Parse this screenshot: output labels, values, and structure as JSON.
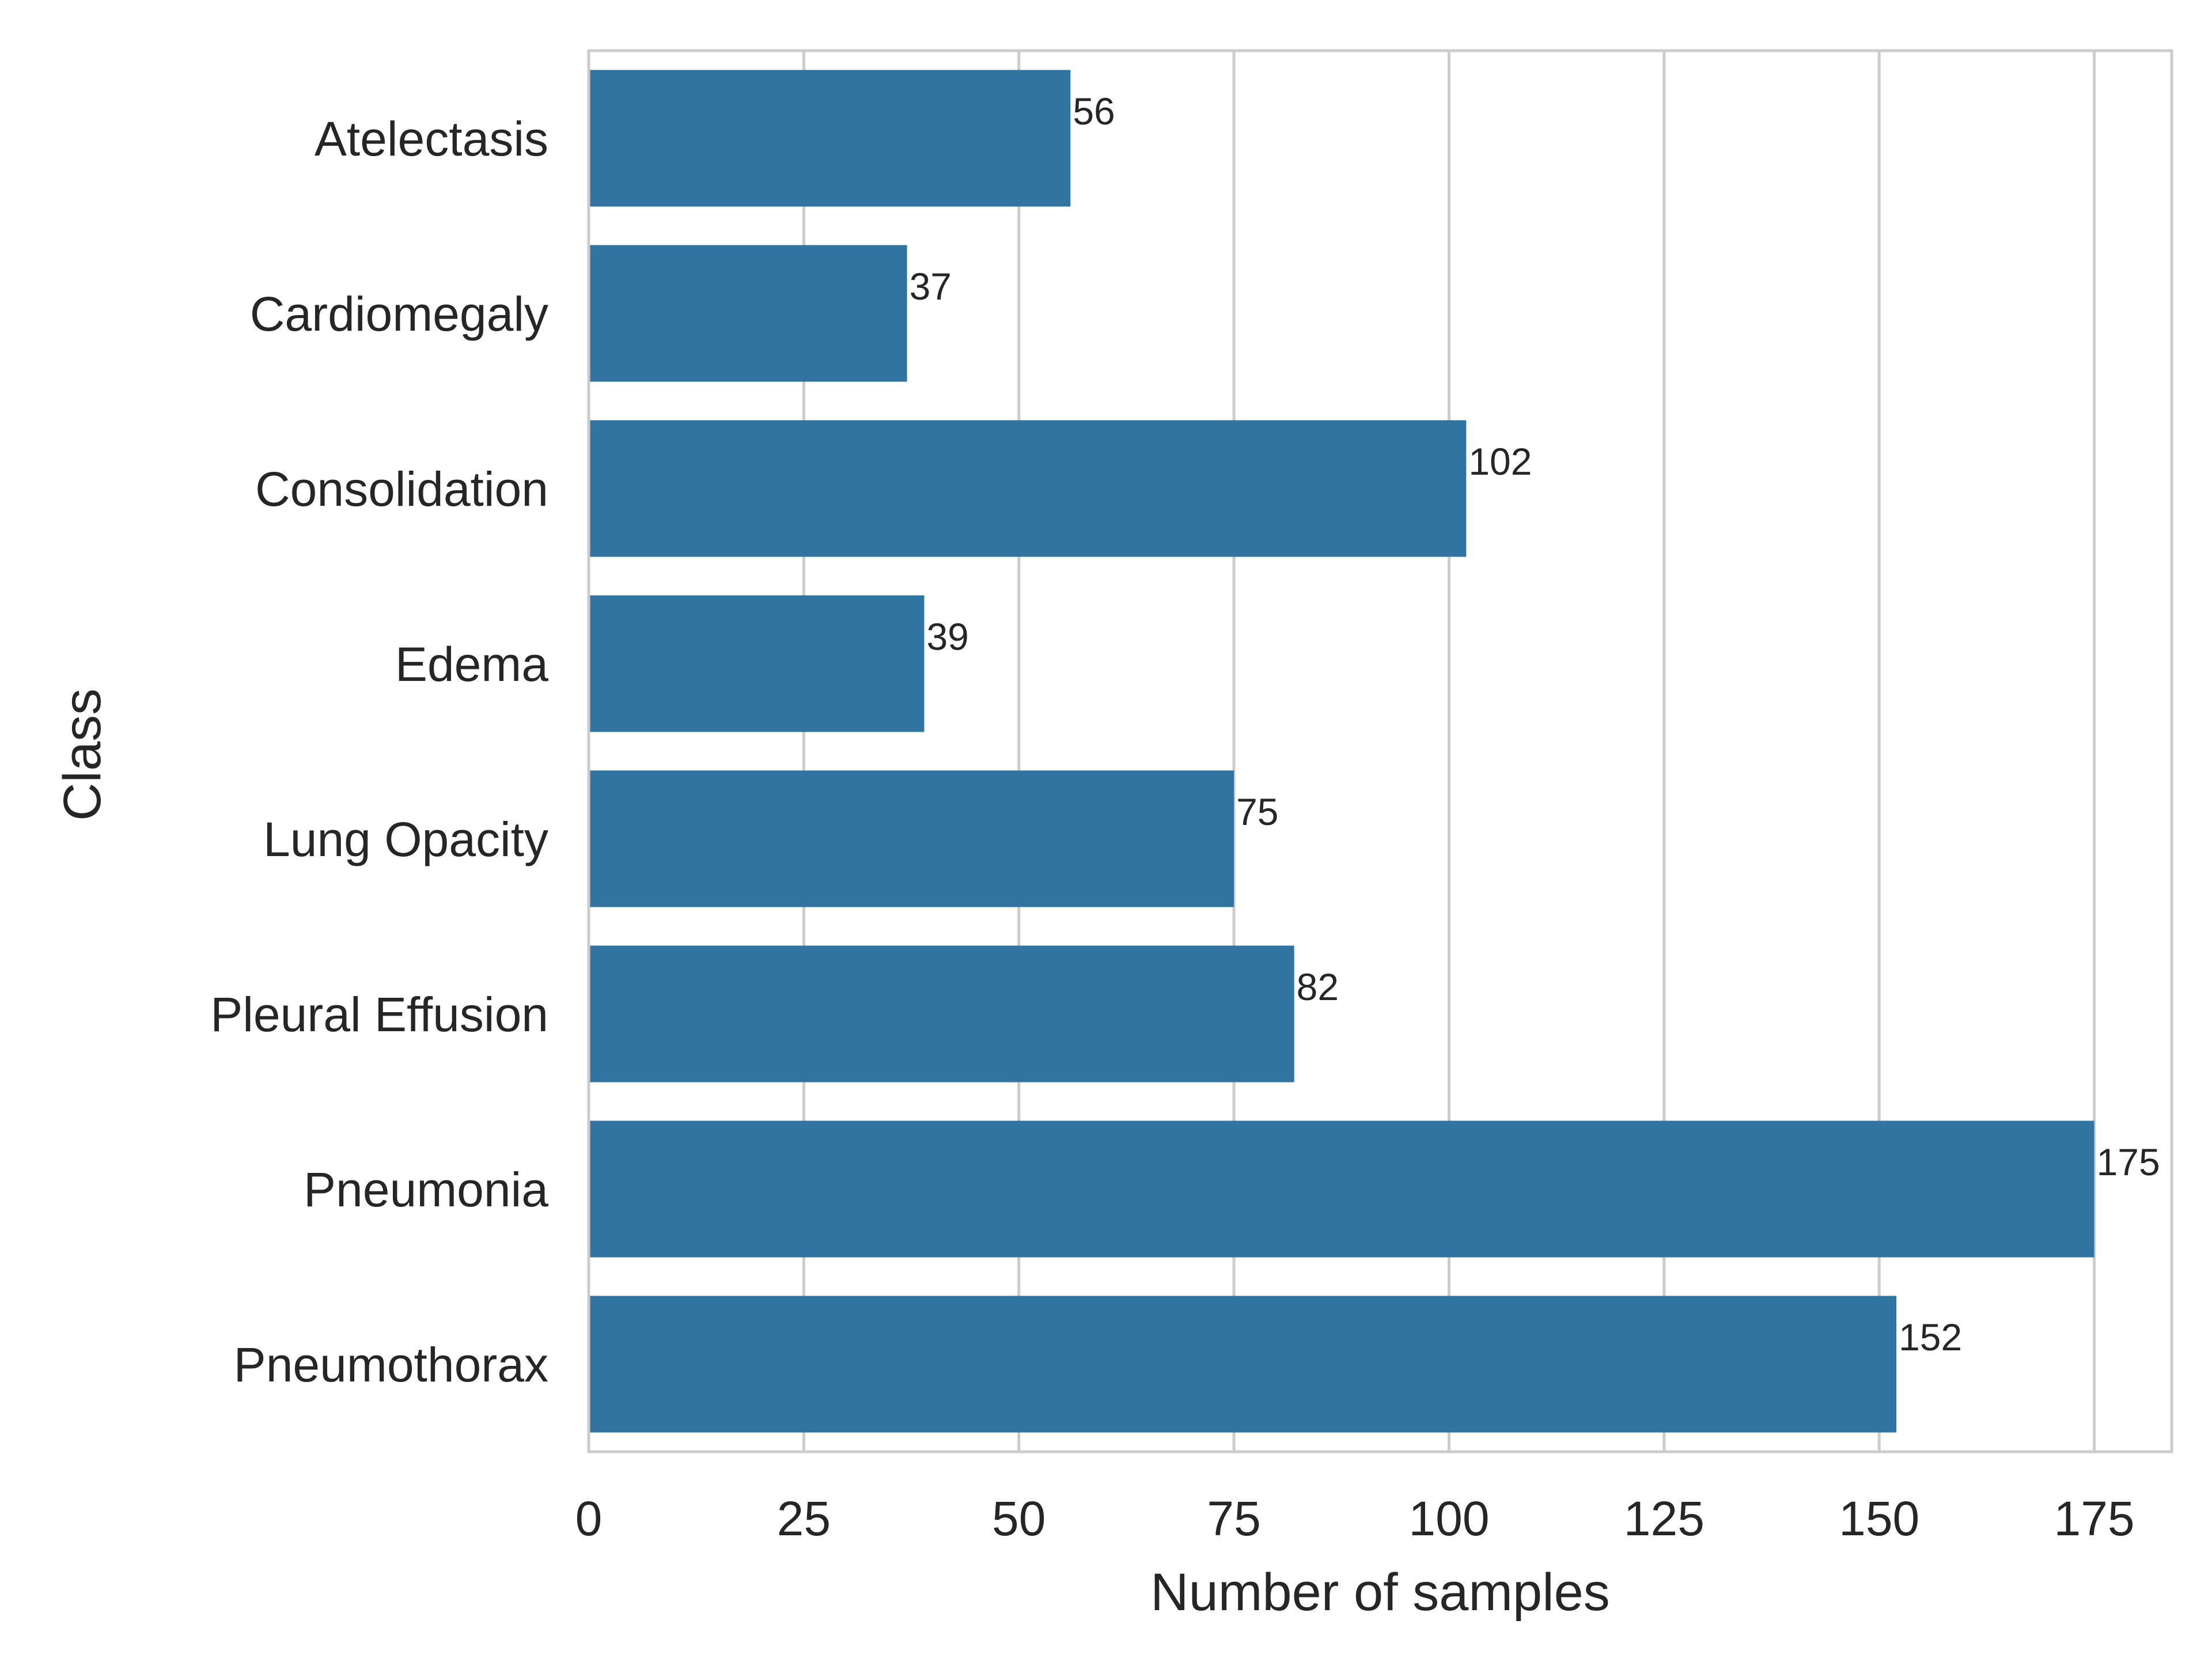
{
  "chart_data": {
    "type": "bar",
    "orientation": "horizontal",
    "title": "",
    "xlabel": "Number of samples",
    "ylabel": "Class",
    "categories": [
      "Atelectasis",
      "Cardiomegaly",
      "Consolidation",
      "Edema",
      "Lung Opacity",
      "Pleural Effusion",
      "Pneumonia",
      "Pneumothorax"
    ],
    "values": [
      56,
      37,
      102,
      39,
      75,
      82,
      175,
      152
    ],
    "data_labels": [
      "56",
      "37",
      "102",
      "39",
      "75",
      "82",
      "175",
      "152"
    ],
    "xlim": [
      0,
      184
    ],
    "xticks": [
      0,
      25,
      50,
      75,
      100,
      125,
      150,
      175
    ],
    "xtick_labels": [
      "0",
      "25",
      "50",
      "75",
      "100",
      "125",
      "150",
      "175"
    ],
    "grid": "x-major",
    "legend": "none",
    "colors": {
      "bar": "#3274a1",
      "grid": "#cccccc",
      "spine": "#cccccc",
      "text": "#262626"
    }
  }
}
